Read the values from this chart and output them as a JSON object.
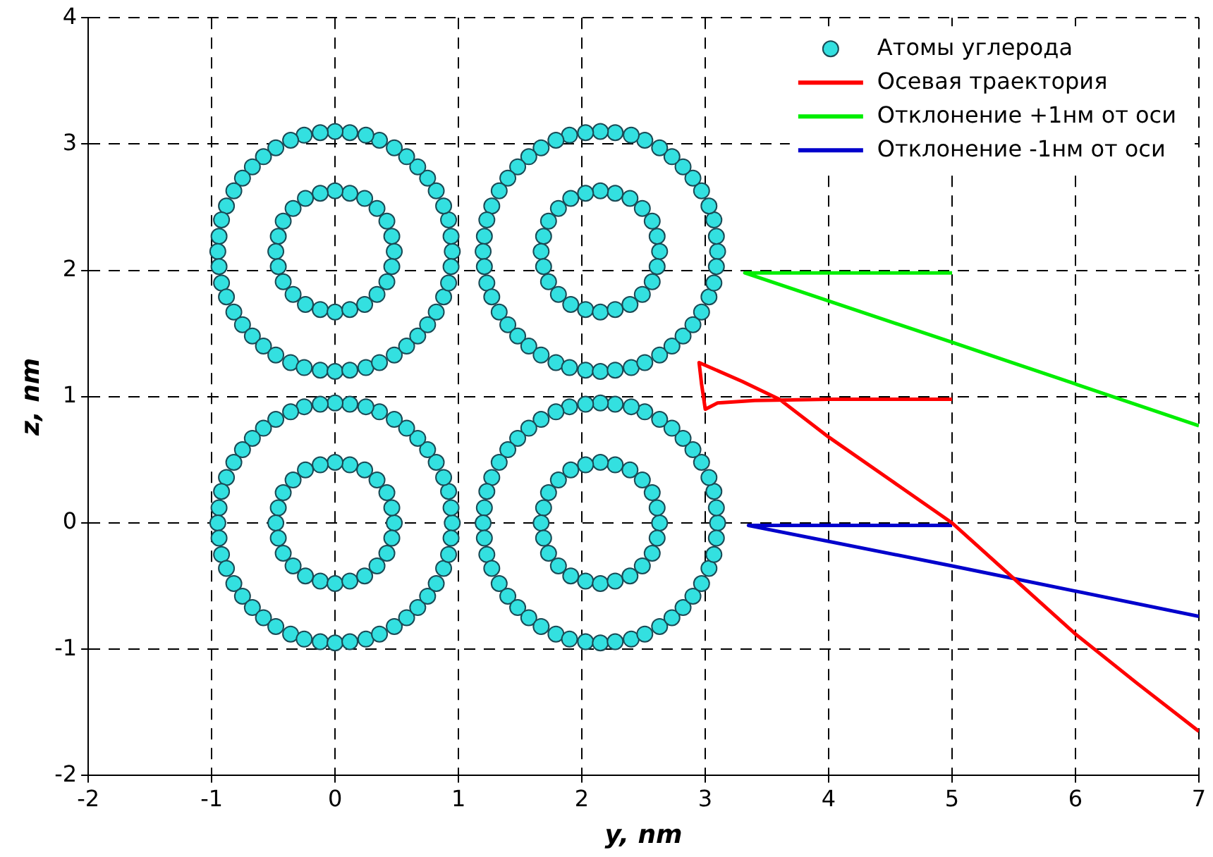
{
  "chart_data": {
    "type": "scatter",
    "xlabel": "y, nm",
    "ylabel": "z, nm",
    "xlim": [
      -2,
      7
    ],
    "xticks": [
      -2,
      -1,
      0,
      1,
      2,
      3,
      4,
      5,
      6,
      7
    ],
    "ylim": [
      -2,
      4
    ],
    "yticks": [
      -2,
      -1,
      0,
      1,
      2,
      3,
      4
    ],
    "grid": true,
    "legend": "top right",
    "marker": "circle",
    "series": [
      {
        "name": "Атомы углерода",
        "type": "scatter",
        "color": "#33e0e0",
        "x": [
          0.95,
          0.94,
          0.92,
          0.88,
          0.82,
          0.75,
          0.67,
          0.58,
          0.48,
          0.36,
          0.25,
          0.12,
          0,
          -0.12,
          -0.25,
          -0.36,
          -0.48,
          -0.58,
          -0.67,
          -0.75,
          -0.82,
          -0.88,
          -0.92,
          -0.94,
          -0.95,
          -0.94,
          -0.92,
          -0.88,
          -0.82,
          -0.75,
          -0.67,
          -0.58,
          -0.48,
          -0.36,
          -0.25,
          -0.12,
          0,
          0.12,
          0.25,
          0.36,
          0.48,
          0.58,
          0.67,
          0.75,
          0.82,
          0.88,
          0.92,
          0.94,
          0.48,
          0.46,
          0.42,
          0.34,
          0.24,
          0.12,
          0,
          -0.12,
          -0.24,
          -0.34,
          -0.42,
          -0.46,
          -0.48,
          -0.46,
          -0.42,
          -0.34,
          -0.24,
          -0.12,
          0,
          0.12,
          0.24,
          0.34,
          0.42,
          0.46,
          3.1,
          3.09,
          3.07,
          3.03,
          2.97,
          2.9,
          2.82,
          2.73,
          2.63,
          2.51,
          2.4,
          2.27,
          2.15,
          2.03,
          1.9,
          1.79,
          1.67,
          1.57,
          1.48,
          1.4,
          1.33,
          1.27,
          1.23,
          1.21,
          1.2,
          1.21,
          1.23,
          1.27,
          1.33,
          1.4,
          1.48,
          1.57,
          1.67,
          1.79,
          1.9,
          2.03,
          2.15,
          2.27,
          2.4,
          2.51,
          2.63,
          2.73,
          2.82,
          2.9,
          2.97,
          3.03,
          3.07,
          3.09,
          2.63,
          2.61,
          2.57,
          2.49,
          2.39,
          2.27,
          2.15,
          2.03,
          1.91,
          1.81,
          1.73,
          1.69,
          1.67,
          1.69,
          1.73,
          1.81,
          1.91,
          2.03,
          2.15,
          2.27,
          2.39,
          2.49,
          2.57,
          2.61,
          0.95,
          0.94,
          0.92,
          0.88,
          0.82,
          0.75,
          0.67,
          0.58,
          0.48,
          0.36,
          0.25,
          0.12,
          0,
          -0.12,
          -0.25,
          -0.36,
          -0.48,
          -0.58,
          -0.67,
          -0.75,
          -0.82,
          -0.88,
          -0.92,
          -0.94,
          -0.95,
          -0.94,
          -0.92,
          -0.88,
          -0.82,
          -0.75,
          -0.67,
          -0.58,
          -0.48,
          -0.36,
          -0.25,
          -0.12,
          0,
          0.12,
          0.25,
          0.36,
          0.48,
          0.58,
          0.67,
          0.75,
          0.82,
          0.88,
          0.92,
          0.94,
          0.48,
          0.46,
          0.42,
          0.34,
          0.24,
          0.12,
          0,
          -0.12,
          -0.24,
          -0.34,
          -0.42,
          -0.46,
          -0.48,
          -0.46,
          -0.42,
          -0.34,
          -0.24,
          -0.12,
          0,
          0.12,
          0.24,
          0.34,
          0.42,
          0.46,
          3.1,
          3.09,
          3.07,
          3.03,
          2.97,
          2.9,
          2.82,
          2.73,
          2.63,
          2.51,
          2.4,
          2.27,
          2.15,
          2.03,
          1.9,
          1.79,
          1.67,
          1.57,
          1.48,
          1.4,
          1.33,
          1.27,
          1.23,
          1.21,
          1.2,
          1.21,
          1.23,
          1.27,
          1.33,
          1.4,
          1.48,
          1.57,
          1.67,
          1.79,
          1.9,
          2.03,
          2.15,
          2.27,
          2.4,
          2.51,
          2.63,
          2.73,
          2.82,
          2.9,
          2.97,
          3.03,
          3.07,
          3.09,
          2.63,
          2.61,
          2.57,
          2.49,
          2.39,
          2.27,
          2.15,
          2.03,
          1.91,
          1.81,
          1.73,
          1.69,
          1.67,
          1.69,
          1.73,
          1.81,
          1.91,
          2.03,
          2.15,
          2.27,
          2.39,
          2.49,
          2.57,
          2.61
        ],
        "values": [
          2.15,
          2.27,
          2.4,
          2.51,
          2.63,
          2.73,
          2.82,
          2.9,
          2.97,
          3.03,
          3.07,
          3.09,
          3.1,
          3.09,
          3.07,
          3.03,
          2.97,
          2.9,
          2.82,
          2.73,
          2.63,
          2.51,
          2.4,
          2.27,
          2.15,
          2.03,
          1.9,
          1.79,
          1.67,
          1.57,
          1.48,
          1.4,
          1.33,
          1.27,
          1.23,
          1.21,
          1.2,
          1.21,
          1.23,
          1.27,
          1.33,
          1.4,
          1.48,
          1.57,
          1.67,
          1.79,
          1.9,
          2.03,
          2.15,
          2.27,
          2.39,
          2.49,
          2.57,
          2.61,
          2.63,
          2.61,
          2.57,
          2.49,
          2.39,
          2.27,
          2.15,
          2.03,
          1.91,
          1.81,
          1.73,
          1.69,
          1.67,
          1.69,
          1.73,
          1.81,
          1.91,
          2.03,
          2.15,
          2.27,
          2.4,
          2.51,
          2.63,
          2.73,
          2.82,
          2.9,
          2.97,
          3.03,
          3.07,
          3.09,
          3.1,
          3.09,
          3.07,
          3.03,
          2.97,
          2.9,
          2.82,
          2.73,
          2.63,
          2.51,
          2.4,
          2.27,
          2.15,
          2.03,
          1.9,
          1.79,
          1.67,
          1.57,
          1.48,
          1.4,
          1.33,
          1.27,
          1.23,
          1.21,
          1.2,
          1.21,
          1.23,
          1.27,
          1.33,
          1.4,
          1.48,
          1.57,
          1.67,
          1.79,
          1.9,
          2.03,
          2.15,
          2.27,
          2.39,
          2.49,
          2.57,
          2.61,
          2.63,
          2.61,
          2.57,
          2.49,
          2.39,
          2.27,
          2.15,
          2.03,
          1.91,
          1.81,
          1.73,
          1.69,
          1.67,
          1.69,
          1.73,
          1.81,
          1.91,
          2.03,
          0,
          0.12,
          0.25,
          0.36,
          0.48,
          0.58,
          0.67,
          0.75,
          0.82,
          0.88,
          0.92,
          0.94,
          0.95,
          0.94,
          0.92,
          0.88,
          0.82,
          0.75,
          0.67,
          0.58,
          0.48,
          0.36,
          0.25,
          0.12,
          0,
          -0.12,
          -0.25,
          -0.36,
          -0.48,
          -0.58,
          -0.67,
          -0.75,
          -0.82,
          -0.88,
          -0.92,
          -0.94,
          -0.95,
          -0.94,
          -0.92,
          -0.88,
          -0.82,
          -0.75,
          -0.67,
          -0.58,
          -0.48,
          -0.36,
          -0.25,
          -0.12,
          0,
          0.12,
          0.24,
          0.34,
          0.42,
          0.46,
          0.48,
          0.46,
          0.42,
          0.34,
          0.24,
          0.12,
          0,
          -0.12,
          -0.24,
          -0.34,
          -0.42,
          -0.46,
          -0.48,
          -0.46,
          -0.42,
          -0.34,
          -0.24,
          -0.12,
          0,
          0.12,
          0.25,
          0.36,
          0.48,
          0.58,
          0.67,
          0.75,
          0.82,
          0.88,
          0.92,
          0.94,
          0.95,
          0.94,
          0.92,
          0.88,
          0.82,
          0.75,
          0.67,
          0.58,
          0.48,
          0.36,
          0.25,
          0.12,
          0,
          -0.12,
          -0.25,
          -0.36,
          -0.48,
          -0.58,
          -0.67,
          -0.75,
          -0.82,
          -0.88,
          -0.92,
          -0.94,
          -0.95,
          -0.94,
          -0.92,
          -0.88,
          -0.82,
          -0.75,
          -0.67,
          -0.58,
          -0.48,
          -0.36,
          -0.25,
          -0.12,
          0,
          0.12,
          0.24,
          0.34,
          0.42,
          0.46,
          0.48,
          0.46,
          0.42,
          0.34,
          0.24,
          0.12,
          0,
          -0.12,
          -0.24,
          -0.34,
          -0.42,
          -0.46,
          -0.48,
          -0.46,
          -0.42,
          -0.34,
          -0.24,
          -0.12
        ]
      },
      {
        "name": "Осевая траектория",
        "type": "line",
        "marker": "none",
        "color": "#ff0000",
        "x": [
          5,
          4,
          3.4,
          3.1,
          3,
          2.97,
          2.95,
          3.3,
          3.6,
          4,
          4.5,
          5,
          5.5,
          6,
          6.5,
          7
        ],
        "values": [
          0.98,
          0.98,
          0.97,
          0.95,
          0.9,
          1.1,
          1.27,
          1.12,
          0.98,
          0.68,
          0.34,
          0,
          -0.44,
          -0.88,
          -1.27,
          -1.65
        ]
      },
      {
        "name": "Отклонение +1нм от оси",
        "type": "line",
        "marker": "none",
        "color": "#00ee00",
        "x": [
          5,
          3.32,
          5,
          7
        ],
        "values": [
          1.98,
          1.98,
          1.43,
          0.77
        ]
      },
      {
        "name": "Отклонение -1нм от оси",
        "type": "line",
        "marker": "none",
        "color": "#0000cc",
        "x": [
          5,
          3.35,
          5,
          7
        ],
        "values": [
          -0.02,
          -0.02,
          -0.34,
          -0.74
        ]
      }
    ]
  }
}
